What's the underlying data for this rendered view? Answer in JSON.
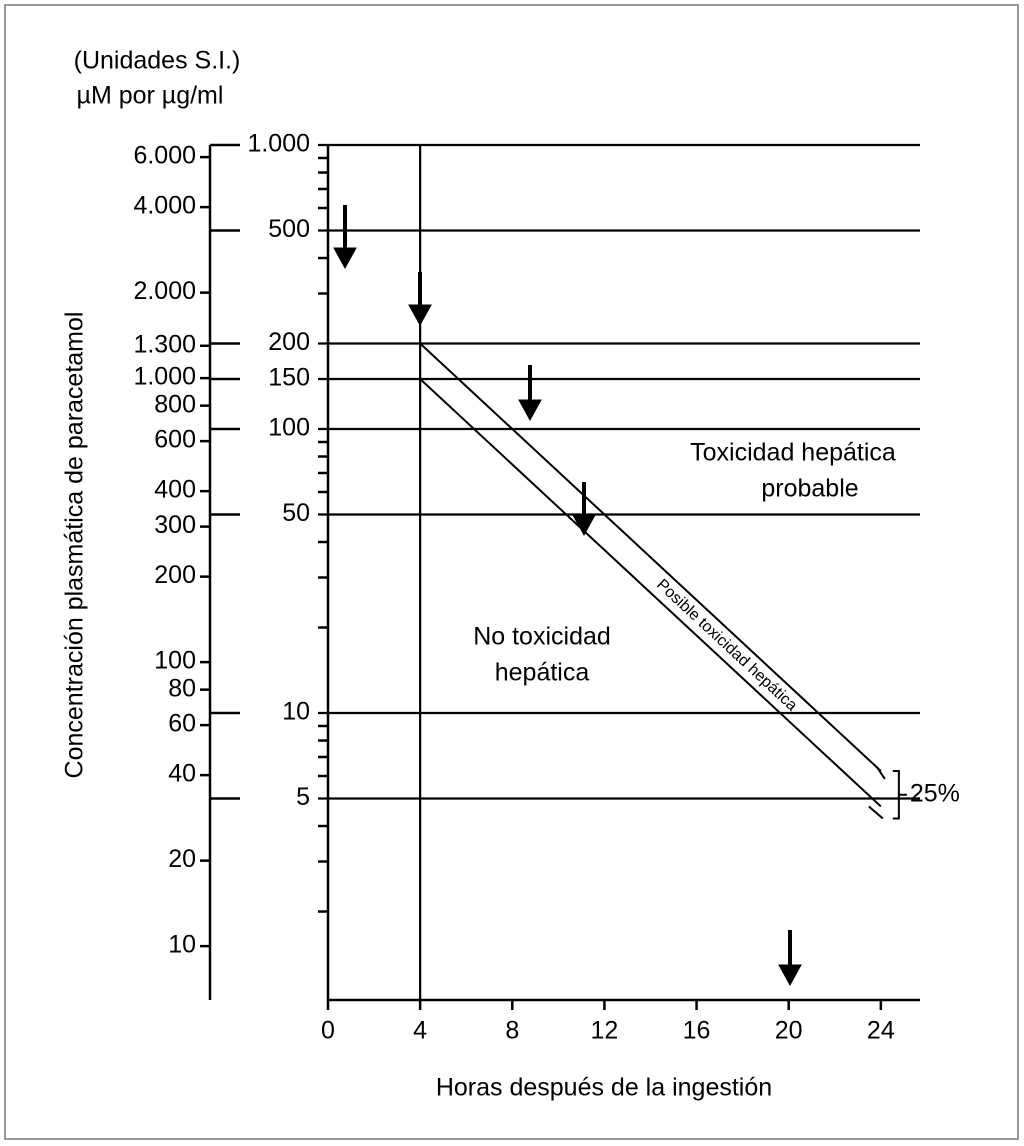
{
  "chart_data": {
    "type": "line",
    "unit_caption": "(Unidades S.I.)",
    "unit_subcaption": "µM por µg/ml",
    "ylabel": "Concentración plasmática de paracetamol",
    "xlabel": "Horas después de la ingestión",
    "log_y": true,
    "xlim": [
      0,
      25.7
    ],
    "xticks": [
      0,
      4,
      8,
      12,
      16,
      20,
      24
    ],
    "ylim": [
      1,
      1000
    ],
    "yticks": [
      {
        "value": 1000,
        "label": "1.000"
      },
      500,
      200,
      150,
      100,
      50,
      10,
      5
    ],
    "yminorticks": [
      900,
      800,
      700,
      600,
      400,
      300,
      90,
      80,
      70,
      60,
      40,
      30,
      20,
      9,
      8,
      7,
      6,
      4,
      3,
      2
    ],
    "y2lim": [
      6.62,
      6620
    ],
    "y2ticks": [
      {
        "value": 6000,
        "label": "6.000"
      },
      {
        "value": 4000,
        "label": "4.000"
      },
      {
        "value": 2000,
        "label": "2.000"
      },
      {
        "value": 1300,
        "label": "1.300"
      },
      {
        "value": 1000,
        "label": "1.000"
      },
      800,
      600,
      400,
      300,
      200,
      100,
      80,
      60,
      40,
      20,
      10
    ],
    "vline_x": 4,
    "x": [
      4,
      24
    ],
    "series": [
      {
        "color": "#000000",
        "values": [
          200,
          6.25
        ]
      },
      {
        "color": "#000000",
        "values": [
          150,
          4.6875
        ]
      }
    ],
    "annotations": {
      "probable": [
        "Toxicidad hepática",
        "probable"
      ],
      "none": [
        "No toxicidad",
        "hepática"
      ],
      "possible": "Posible toxicidad hepática",
      "band": "25%"
    }
  }
}
